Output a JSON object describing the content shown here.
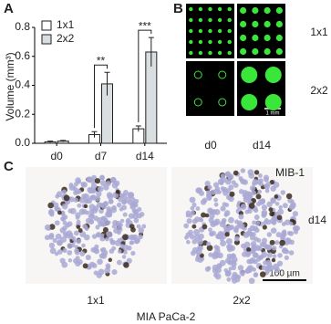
{
  "panels": {
    "a": "A",
    "b": "B",
    "c": "C"
  },
  "chart_data": {
    "type": "bar",
    "y_label": "Volume (mm³)",
    "categories": [
      "d0",
      "d7",
      "d14"
    ],
    "series": [
      {
        "name": "1x1",
        "color": "#ffffff",
        "values": [
          0.01,
          0.06,
          0.1
        ],
        "errors": [
          0.005,
          0.02,
          0.02
        ]
      },
      {
        "name": "2x2",
        "color": "#d9dee0",
        "values": [
          0.015,
          0.41,
          0.63
        ],
        "errors": [
          0.005,
          0.08,
          0.1
        ]
      }
    ],
    "ylim": [
      0,
      0.8
    ],
    "yticks": [
      {
        "value": 0,
        "label": "0.0"
      },
      0.2,
      0.4,
      0.6,
      0.8
    ],
    "significance": [
      "**",
      "***"
    ]
  },
  "panel_b": {
    "rows": [
      "1x1",
      "2x2"
    ],
    "columns": [
      "d0",
      "d14"
    ],
    "scale_bar": "1 mm"
  },
  "panel_c": {
    "stain": "MIB-1",
    "day": "d14",
    "columns": [
      "1x1",
      "2x2"
    ],
    "cell_line": "MIA PaCa-2",
    "scale_bar": "100 µm"
  }
}
